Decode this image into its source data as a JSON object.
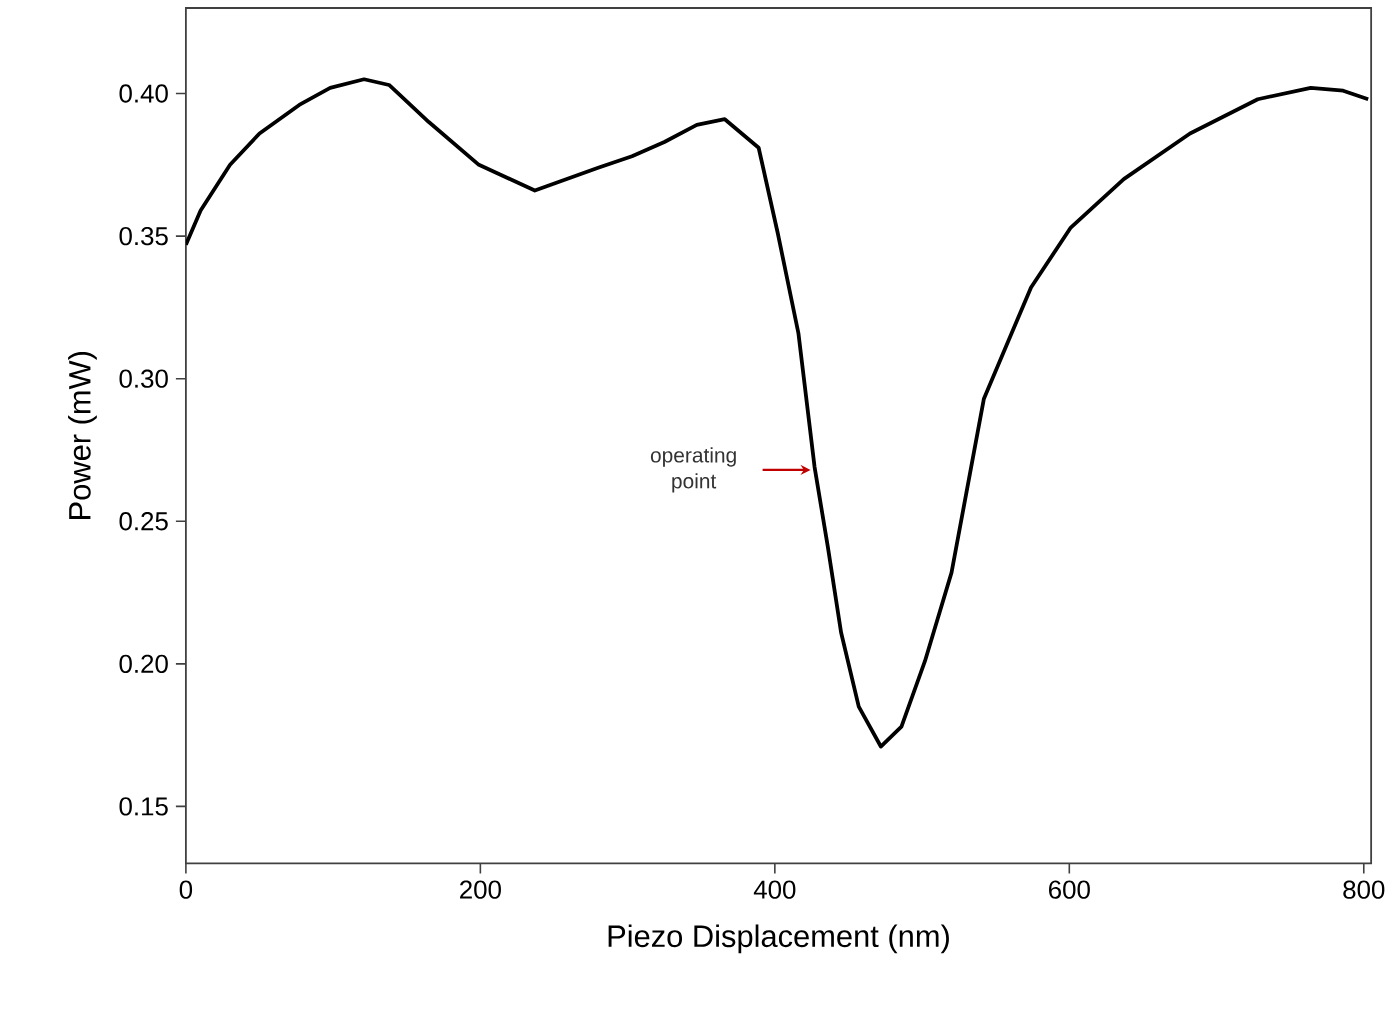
{
  "chart_data": {
    "type": "line",
    "xlabel": "Piezo Displacement (nm)",
    "ylabel": "Power (mW)",
    "xlim": [
      0,
      805
    ],
    "ylim": [
      0.13,
      0.43
    ],
    "xticks": [
      0,
      200,
      400,
      600,
      800
    ],
    "yticks": [
      {
        "value": 0.15,
        "label": "0.15"
      },
      {
        "value": 0.2,
        "label": "0.20"
      },
      {
        "value": 0.25,
        "label": "0.25"
      },
      {
        "value": 0.3,
        "label": "0.30"
      },
      {
        "value": 0.35,
        "label": "0.35"
      },
      {
        "value": 0.4,
        "label": "0.40"
      }
    ],
    "grid": false,
    "legend": false,
    "marker": "none",
    "line_style": "solid",
    "series": [
      {
        "color": "#000000",
        "x": [
          0,
          10,
          30,
          50,
          77,
          98,
          121,
          138,
          165,
          199,
          237,
          280,
          303,
          325,
          347,
          366,
          389,
          402,
          416,
          427,
          436,
          445,
          457,
          472,
          486,
          502,
          520,
          542,
          574,
          601,
          637,
          682,
          728,
          764,
          786,
          803
        ],
        "values": [
          0.347,
          0.359,
          0.375,
          0.386,
          0.396,
          0.402,
          0.405,
          0.403,
          0.39,
          0.375,
          0.366,
          0.374,
          0.378,
          0.383,
          0.389,
          0.391,
          0.381,
          0.351,
          0.316,
          0.269,
          0.241,
          0.211,
          0.185,
          0.171,
          0.178,
          0.201,
          0.232,
          0.293,
          0.332,
          0.353,
          0.37,
          0.386,
          0.398,
          0.402,
          0.401,
          0.398
        ]
      }
    ],
    "annotations": [
      {
        "text": "operating point",
        "x": 427,
        "y": 0.268
      }
    ]
  }
}
